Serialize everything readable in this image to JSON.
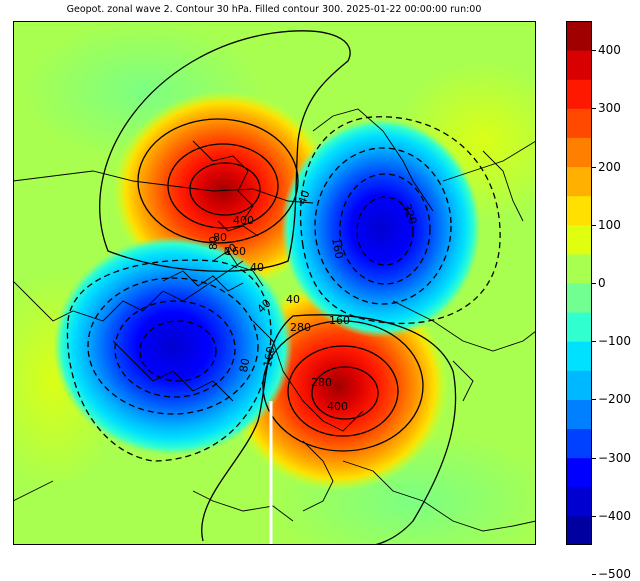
{
  "title": "Geopot. zonal wave 2. Contour 30 hPa. Filled contour 300. 2025-01-22 00:00:00 run:00",
  "colorbar": {
    "ticks": [
      "400",
      "300",
      "200",
      "100",
      "0",
      "−100",
      "−200",
      "−300",
      "−400",
      "−500"
    ],
    "colors": [
      "#0000a0",
      "#0000d0",
      "#0000ff",
      "#0040ff",
      "#0080ff",
      "#00b8ff",
      "#00e0ff",
      "#30ffd0",
      "#70ff90",
      "#a8ff50",
      "#e0ff10",
      "#ffe000",
      "#ffb000",
      "#ff8000",
      "#ff4800",
      "#ff1800",
      "#d80000",
      "#a00000"
    ]
  },
  "contour_labels": [
    "400",
    "280",
    "160",
    "80",
    "40",
    "40",
    "40",
    "160",
    "80",
    "280",
    "400",
    "160",
    "40",
    "80",
    "320",
    "160",
    "40"
  ],
  "map": {
    "colors": {
      "background": "#a8ff50",
      "positive": "#ff1800",
      "negative": "#0000ff"
    }
  }
}
